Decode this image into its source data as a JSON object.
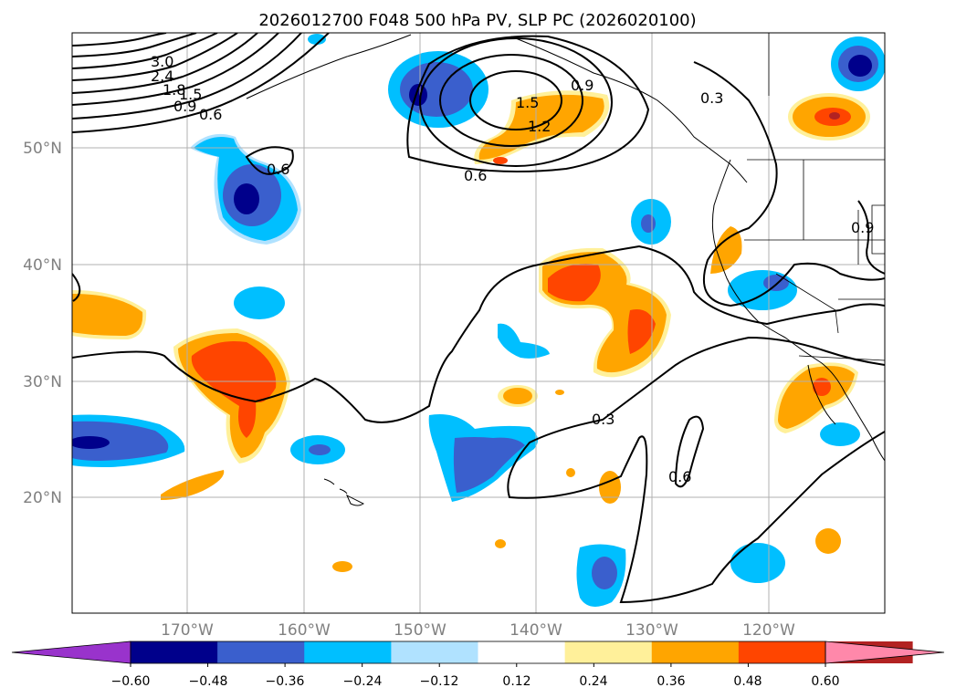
{
  "title": "2026012700 F048 500 hPa PV, SLP PC (2026020100)",
  "lat_labels": [
    "50°N",
    "40°N",
    "30°N",
    "20°N"
  ],
  "lon_labels": [
    "170°W",
    "160°W",
    "150°W",
    "140°W",
    "130°W",
    "120°W"
  ],
  "colorbar": {
    "ticks": [
      "−0.60",
      "−0.48",
      "−0.36",
      "−0.24",
      "−0.12",
      "0.12",
      "0.24",
      "0.36",
      "0.48",
      "0.60"
    ],
    "colors": [
      "#9933cc",
      "#00008b",
      "#3a5fcd",
      "#00bfff",
      "#b0e2ff",
      "#ffffff",
      "#fff09a",
      "#ffa500",
      "#ff4500",
      "#b22222",
      "#ff88aa"
    ]
  },
  "contour_labels": [
    "3.0",
    "2.4",
    "1.8",
    "1.5",
    "0.9",
    "0.6",
    "0.6",
    "1.5",
    "1.2",
    "0.9",
    "0.6",
    "0.3",
    "0.9",
    "0.3",
    "0.6"
  ]
}
